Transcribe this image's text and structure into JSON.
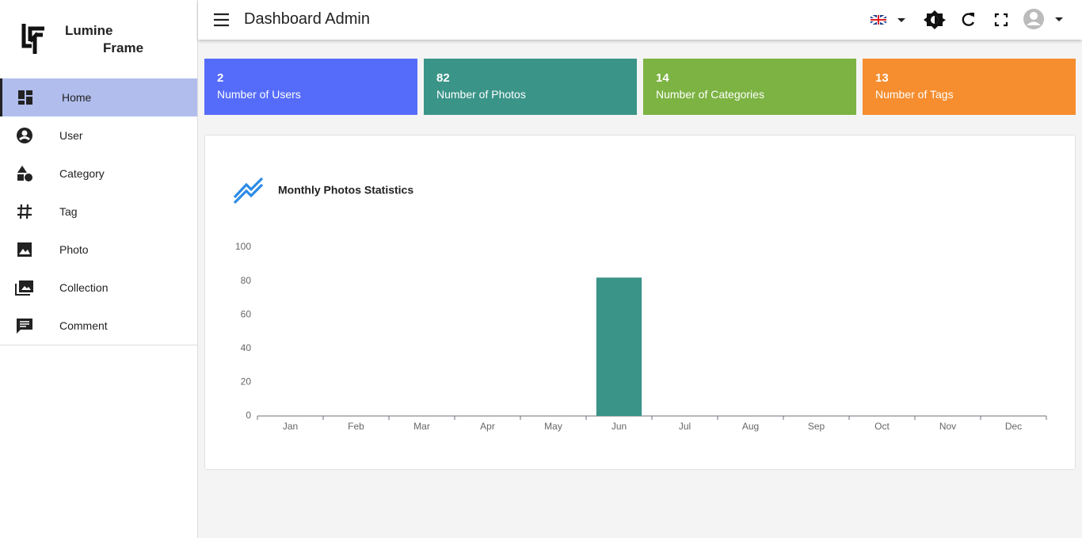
{
  "brand": {
    "line1": "Lumine",
    "line2": "Frame"
  },
  "header": {
    "title": "Dashboard Admin"
  },
  "nav": [
    "Home",
    "User",
    "Category",
    "Tag",
    "Photo",
    "Collection",
    "Comment"
  ],
  "stats": [
    {
      "value": 2,
      "label": "Number of Users"
    },
    {
      "value": 82,
      "label": "Number of Photos"
    },
    {
      "value": 14,
      "label": "Number of Categories"
    },
    {
      "value": 13,
      "label": "Number of Tags"
    }
  ],
  "chart_data": {
    "type": "bar",
    "title": "Monthly Photos Statistics",
    "categories": [
      "Jan",
      "Feb",
      "Mar",
      "Apr",
      "May",
      "Jun",
      "Jul",
      "Aug",
      "Sep",
      "Oct",
      "Nov",
      "Dec"
    ],
    "values": [
      0,
      0,
      0,
      0,
      0,
      82,
      0,
      0,
      0,
      0,
      0,
      0
    ],
    "color": "#3a9488",
    "ylim": [
      0,
      100
    ],
    "yticks": [
      0,
      20,
      40,
      60,
      80,
      100
    ],
    "grid": false
  }
}
